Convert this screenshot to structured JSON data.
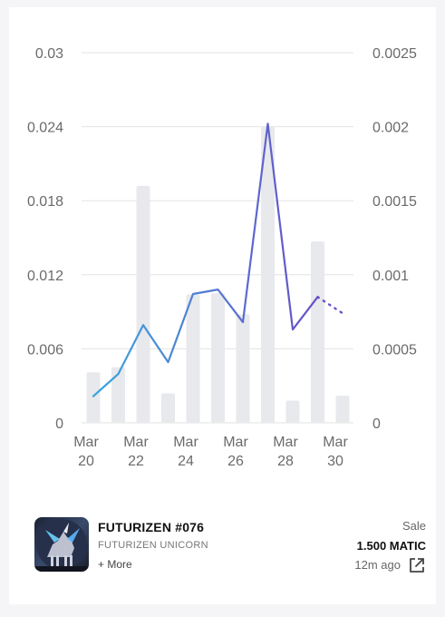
{
  "chart_data": {
    "type": "bar+line",
    "categories": [
      "Mar 20",
      "Mar 21",
      "Mar 22",
      "Mar 23",
      "Mar 24",
      "Mar 25",
      "Mar 26",
      "Mar 27",
      "Mar 28",
      "Mar 29",
      "Mar 30"
    ],
    "x_tick_labels": [
      {
        "month": "Mar",
        "day": "20"
      },
      {
        "month": "Mar",
        "day": "22"
      },
      {
        "month": "Mar",
        "day": "24"
      },
      {
        "month": "Mar",
        "day": "26"
      },
      {
        "month": "Mar",
        "day": "28"
      },
      {
        "month": "Mar",
        "day": "30"
      }
    ],
    "left_axis": {
      "ylim": [
        0,
        0.03
      ],
      "ticks": [
        "0",
        "0.006",
        "0.012",
        "0.018",
        "0.024",
        "0.03"
      ]
    },
    "right_axis": {
      "ylim": [
        0,
        0.0025
      ],
      "ticks": [
        "0",
        "0.0005",
        "0.001",
        "0.0015",
        "0.002",
        "0.0025"
      ]
    },
    "bars": {
      "axis": "left",
      "values": [
        0.0041,
        0.0045,
        0.0192,
        0.0024,
        0.0104,
        0.0105,
        0.0088,
        0.024,
        0.0018,
        0.0147,
        0.0022
      ]
    },
    "line": {
      "axis": "right",
      "solid": [
        {
          "x": "Mar 20",
          "y": 0.00018
        },
        {
          "x": "Mar 21",
          "y": 0.00033
        },
        {
          "x": "Mar 22",
          "y": 0.00066
        },
        {
          "x": "Mar 23",
          "y": 0.00041
        },
        {
          "x": "Mar 24",
          "y": 0.00087
        },
        {
          "x": "Mar 25",
          "y": 0.0009
        },
        {
          "x": "Mar 26",
          "y": 0.00068
        },
        {
          "x": "Mar 27",
          "y": 0.00202
        },
        {
          "x": "Mar 28",
          "y": 0.00063
        },
        {
          "x": "Mar 29",
          "y": 0.00085
        }
      ],
      "dotted": [
        {
          "x": "Mar 29",
          "y": 0.00085
        },
        {
          "x": "Mar 30",
          "y": 0.00074
        }
      ]
    },
    "grid": true,
    "colors": {
      "bar": "#e8e9ec",
      "line_start": "#3aa8dd",
      "line_end": "#6a4fc8",
      "grid": "#e3e3e3",
      "tick": "#6b6b6b"
    }
  },
  "item": {
    "name": "FUTURIZEN #076",
    "collection": "FUTURIZEN UNICORN",
    "more": "+ More",
    "sale_label": "Sale",
    "price": "1.500 MATIC",
    "time": "12m ago"
  },
  "icons": {
    "thumbnail": "unicorn-nft-thumbnail",
    "external": "external-link-icon"
  }
}
